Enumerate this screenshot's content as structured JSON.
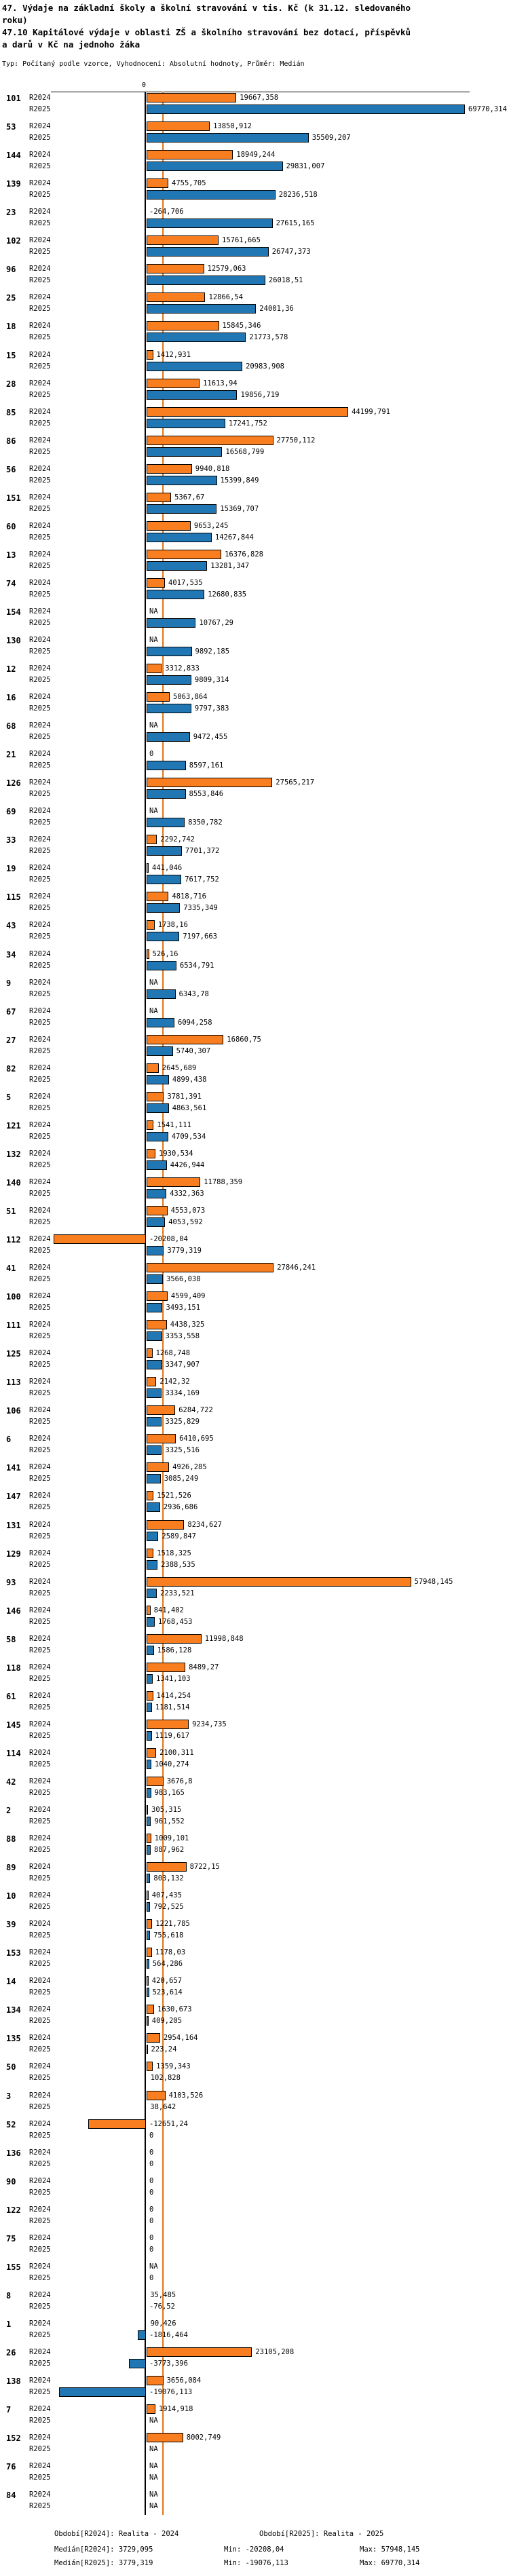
{
  "header": {
    "title_lines": [
      "47. Výdaje na základní školy a školní stravování v tis. Kč (k 31.12. sledovaného",
      "roku)",
      "47.10 Kapitálové výdaje v oblasti ZŠ a školního stravování bez dotací, příspěvků",
      "a darů v Kč na jednoho žáka"
    ],
    "type_line": "Typ: Počítaný podle vzorce, Vyhodnocení: Absolutní hodnoty, Průměr: Medián"
  },
  "chart_data": {
    "type": "bar",
    "orientation": "horizontal",
    "series": [
      "R2024",
      "R2025"
    ],
    "colors": {
      "R2024": "#F87E20",
      "R2025": "#2077B4"
    },
    "zero_tick_label": "0",
    "x_min": -20208.04,
    "x_max": 69770.314,
    "medians": {
      "R2024": "3729,095",
      "R2025": "3779,319"
    },
    "groups": [
      {
        "id": "101",
        "R2024": "19667,358",
        "R2025": "69770,314"
      },
      {
        "id": "53",
        "R2024": "13850,912",
        "R2025": "35509,207"
      },
      {
        "id": "144",
        "R2024": "18949,244",
        "R2025": "29831,007"
      },
      {
        "id": "139",
        "R2024": "4755,705",
        "R2025": "28236,518"
      },
      {
        "id": "23",
        "R2024": "-264,706",
        "R2025": "27615,165"
      },
      {
        "id": "102",
        "R2024": "15761,665",
        "R2025": "26747,373"
      },
      {
        "id": "96",
        "R2024": "12579,063",
        "R2025": "26018,51"
      },
      {
        "id": "25",
        "R2024": "12866,54",
        "R2025": "24001,36"
      },
      {
        "id": "18",
        "R2024": "15845,346",
        "R2025": "21773,578"
      },
      {
        "id": "15",
        "R2024": "1412,931",
        "R2025": "20983,908"
      },
      {
        "id": "28",
        "R2024": "11613,94",
        "R2025": "19856,719"
      },
      {
        "id": "85",
        "R2024": "44199,791",
        "R2025": "17241,752"
      },
      {
        "id": "86",
        "R2024": "27750,112",
        "R2025": "16568,799"
      },
      {
        "id": "56",
        "R2024": "9940,818",
        "R2025": "15399,849"
      },
      {
        "id": "151",
        "R2024": "5367,67",
        "R2025": "15369,707"
      },
      {
        "id": "60",
        "R2024": "9653,245",
        "R2025": "14267,844"
      },
      {
        "id": "13",
        "R2024": "16376,828",
        "R2025": "13281,347"
      },
      {
        "id": "74",
        "R2024": "4017,535",
        "R2025": "12680,835"
      },
      {
        "id": "154",
        "R2024": "NA",
        "R2025": "10767,29"
      },
      {
        "id": "130",
        "R2024": "NA",
        "R2025": "9892,185"
      },
      {
        "id": "12",
        "R2024": "3312,833",
        "R2025": "9809,314"
      },
      {
        "id": "16",
        "R2024": "5063,864",
        "R2025": "9797,383"
      },
      {
        "id": "68",
        "R2024": "NA",
        "R2025": "9472,455"
      },
      {
        "id": "21",
        "R2024": "0",
        "R2025": "8597,161"
      },
      {
        "id": "126",
        "R2024": "27565,217",
        "R2025": "8553,846"
      },
      {
        "id": "69",
        "R2024": "NA",
        "R2025": "8350,782"
      },
      {
        "id": "33",
        "R2024": "2292,742",
        "R2025": "7701,372"
      },
      {
        "id": "19",
        "R2024": "441,046",
        "R2025": "7617,752"
      },
      {
        "id": "115",
        "R2024": "4818,716",
        "R2025": "7335,349"
      },
      {
        "id": "43",
        "R2024": "1738,16",
        "R2025": "7197,663"
      },
      {
        "id": "34",
        "R2024": "526,16",
        "R2025": "6534,791"
      },
      {
        "id": "9",
        "R2024": "NA",
        "R2025": "6343,78"
      },
      {
        "id": "67",
        "R2024": "NA",
        "R2025": "6094,258"
      },
      {
        "id": "27",
        "R2024": "16860,75",
        "R2025": "5740,307"
      },
      {
        "id": "82",
        "R2024": "2645,689",
        "R2025": "4899,438"
      },
      {
        "id": "5",
        "R2024": "3781,391",
        "R2025": "4863,561"
      },
      {
        "id": "121",
        "R2024": "1541,111",
        "R2025": "4709,534"
      },
      {
        "id": "132",
        "R2024": "1930,534",
        "R2025": "4426,944"
      },
      {
        "id": "140",
        "R2024": "11788,359",
        "R2025": "4332,363"
      },
      {
        "id": "51",
        "R2024": "4553,073",
        "R2025": "4053,592"
      },
      {
        "id": "112",
        "R2024": "-20208,04",
        "R2025": "3779,319"
      },
      {
        "id": "41",
        "R2024": "27846,241",
        "R2025": "3566,038"
      },
      {
        "id": "100",
        "R2024": "4599,409",
        "R2025": "3493,151"
      },
      {
        "id": "111",
        "R2024": "4438,325",
        "R2025": "3353,558"
      },
      {
        "id": "125",
        "R2024": "1268,748",
        "R2025": "3347,907"
      },
      {
        "id": "113",
        "R2024": "2142,32",
        "R2025": "3334,169"
      },
      {
        "id": "106",
        "R2024": "6284,722",
        "R2025": "3325,829"
      },
      {
        "id": "6",
        "R2024": "6410,695",
        "R2025": "3325,516"
      },
      {
        "id": "141",
        "R2024": "4926,285",
        "R2025": "3085,249"
      },
      {
        "id": "147",
        "R2024": "1521,526",
        "R2025": "2936,686"
      },
      {
        "id": "131",
        "R2024": "8234,627",
        "R2025": "2589,847"
      },
      {
        "id": "129",
        "R2024": "1518,325",
        "R2025": "2388,535"
      },
      {
        "id": "93",
        "R2024": "57948,145",
        "R2025": "2233,521"
      },
      {
        "id": "146",
        "R2024": "841,402",
        "R2025": "1768,453"
      },
      {
        "id": "58",
        "R2024": "11998,848",
        "R2025": "1586,128"
      },
      {
        "id": "118",
        "R2024": "8489,27",
        "R2025": "1341,103"
      },
      {
        "id": "61",
        "R2024": "1414,254",
        "R2025": "1181,514"
      },
      {
        "id": "145",
        "R2024": "9234,735",
        "R2025": "1119,617"
      },
      {
        "id": "114",
        "R2024": "2100,311",
        "R2025": "1040,274"
      },
      {
        "id": "42",
        "R2024": "3676,8",
        "R2025": "983,165"
      },
      {
        "id": "2",
        "R2024": "305,315",
        "R2025": "961,552"
      },
      {
        "id": "88",
        "R2024": "1009,101",
        "R2025": "887,962"
      },
      {
        "id": "89",
        "R2024": "8722,15",
        "R2025": "803,132"
      },
      {
        "id": "10",
        "R2024": "407,435",
        "R2025": "792,525"
      },
      {
        "id": "39",
        "R2024": "1221,785",
        "R2025": "755,618"
      },
      {
        "id": "153",
        "R2024": "1178,03",
        "R2025": "564,286"
      },
      {
        "id": "14",
        "R2024": "420,657",
        "R2025": "523,614"
      },
      {
        "id": "134",
        "R2024": "1630,673",
        "R2025": "409,205"
      },
      {
        "id": "135",
        "R2024": "2954,164",
        "R2025": "223,24"
      },
      {
        "id": "50",
        "R2024": "1359,343",
        "R2025": "102,828"
      },
      {
        "id": "3",
        "R2024": "4103,526",
        "R2025": "38,642"
      },
      {
        "id": "52",
        "R2024": "-12651,24",
        "R2025": "0"
      },
      {
        "id": "136",
        "R2024": "0",
        "R2025": "0"
      },
      {
        "id": "90",
        "R2024": "0",
        "R2025": "0"
      },
      {
        "id": "122",
        "R2024": "0",
        "R2025": "0"
      },
      {
        "id": "75",
        "R2024": "0",
        "R2025": "0"
      },
      {
        "id": "155",
        "R2024": "NA",
        "R2025": "0"
      },
      {
        "id": "8",
        "R2024": "35,485",
        "R2025": "-76,52"
      },
      {
        "id": "1",
        "R2024": "90,426",
        "R2025": "-1816,464"
      },
      {
        "id": "26",
        "R2024": "23105,208",
        "R2025": "-3773,396"
      },
      {
        "id": "138",
        "R2024": "3656,084",
        "R2025": "-19076,113"
      },
      {
        "id": "7",
        "R2024": "1914,918",
        "R2025": "NA"
      },
      {
        "id": "152",
        "R2024": "8002,749",
        "R2025": "NA"
      },
      {
        "id": "76",
        "R2024": "NA",
        "R2025": "NA"
      },
      {
        "id": "84",
        "R2024": "NA",
        "R2025": "NA"
      }
    ]
  },
  "footer": {
    "period_r2024": "Období[R2024]: Realita - 2024",
    "period_r2025": "Období[R2025]: Realita - 2025",
    "median_r2024": "Medián[R2024]: 3729,095",
    "min_r2024": "Min: -20208,04",
    "max_r2024": "Max: 57948,145",
    "median_r2025": "Medián[R2025]: 3779,319",
    "min_r2025": "Min: -19076,113",
    "max_r2025": "Max: 69770,314"
  }
}
